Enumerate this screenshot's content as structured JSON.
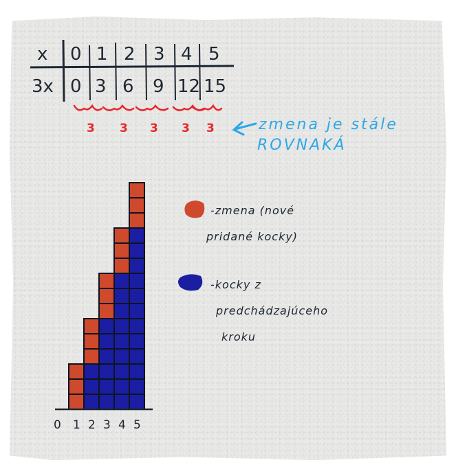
{
  "table": {
    "header": "x",
    "values_x": [
      "0",
      "1",
      "2",
      "3",
      "4",
      "5"
    ],
    "row_label": "3x",
    "values_3x": [
      "0",
      "3",
      "6",
      "9",
      "12",
      "15"
    ]
  },
  "differences": [
    "3",
    "3",
    "3",
    "3",
    "3"
  ],
  "note": {
    "line1": "zmena je stále",
    "line2": "ROVNAKÁ"
  },
  "legend": {
    "red": {
      "color": "#cf4a2d",
      "line1": "-zmena (nové",
      "line2": "pridané kocky)"
    },
    "blue": {
      "color": "#1b1ea3",
      "line1": "-kocky z",
      "line2": "predchádzajúceho",
      "line3": "kroku"
    }
  },
  "cube_chart": {
    "columns": [
      3,
      6,
      9,
      12,
      15
    ],
    "new_per_step": 3,
    "axis_labels": [
      "0",
      "1",
      "2",
      "3",
      "4",
      "5"
    ]
  }
}
